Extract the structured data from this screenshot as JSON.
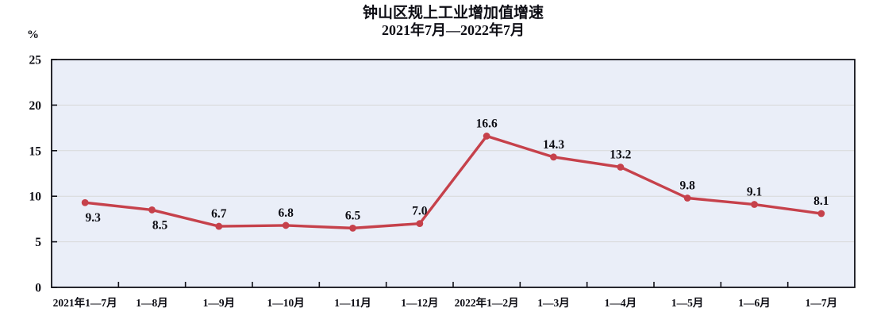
{
  "header": {
    "title": "钟山区规上工业增加值增速",
    "subtitle": "2021年7月—2022年7月"
  },
  "chart_data": {
    "type": "line",
    "title": "钟山区规上工业增加值增速",
    "subtitle": "2021年7月—2022年7月",
    "categories": [
      "2021年1—7月",
      "1—8月",
      "1—9月",
      "1—10月",
      "1—11月",
      "1—12月",
      "2022年1—2月",
      "1—3月",
      "1—4月",
      "1—5月",
      "1—6月",
      "1—7月"
    ],
    "values": [
      9.3,
      8.5,
      6.7,
      6.8,
      6.5,
      7.0,
      16.6,
      14.3,
      13.2,
      9.8,
      9.1,
      8.1
    ],
    "xlabel": "",
    "ylabel": "%",
    "ylim": [
      0,
      25
    ],
    "yticks": [
      0,
      5,
      10,
      15,
      20,
      25
    ],
    "grid": "horizontal",
    "legend": "none",
    "colors": {
      "line": "#c6414b",
      "marker": "#c6414b",
      "plot_background": "#eaeef8",
      "gridline": "#d8d8d8",
      "axis_border": "#111118",
      "text": "#0d0d14"
    },
    "data_label_decimals": 1,
    "labels_below_indices": [
      0,
      1
    ]
  }
}
